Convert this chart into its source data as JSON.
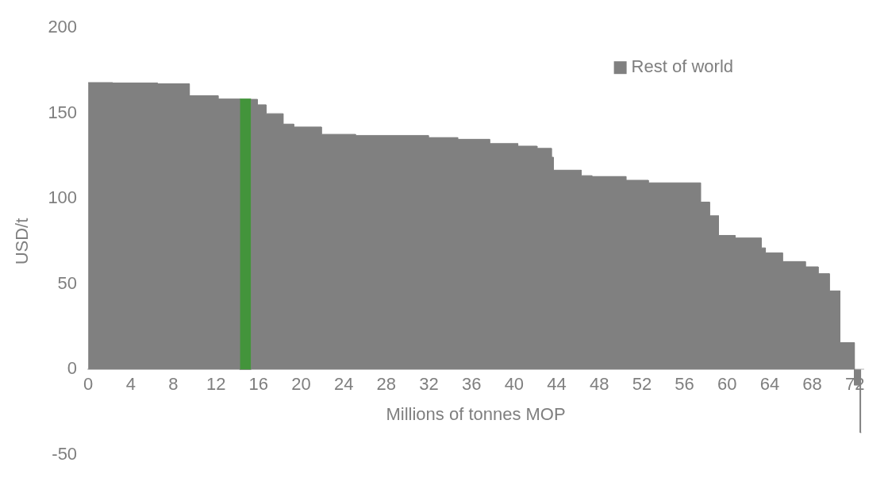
{
  "chart_data": {
    "type": "area",
    "xlabel": "Millions of tonnes MOP",
    "ylabel": "USD/t",
    "xlim": [
      0,
      72.8
    ],
    "xticks": [
      0,
      4,
      8,
      12,
      16,
      20,
      24,
      28,
      32,
      36,
      40,
      44,
      48,
      52,
      56,
      60,
      64,
      68,
      72
    ],
    "ylim": [
      -50,
      200
    ],
    "yticks": [
      -50,
      0,
      50,
      100,
      150,
      200
    ],
    "grid": false,
    "legend": "top right",
    "series": [
      {
        "name": "Rest of world",
        "color": "#808080",
        "x": [
          0,
          2.3,
          2.3,
          6.5,
          6.5,
          9.5,
          9.5,
          12.2,
          12.2,
          14.25,
          14.25,
          15.3,
          15.3,
          15.9,
          15.9,
          16.7,
          16.7,
          18.3,
          18.3,
          19.3,
          19.3,
          21.9,
          21.9,
          25.1,
          25.1,
          31.95,
          31.95,
          34.7,
          34.7,
          37.7,
          37.7,
          40.35,
          40.35,
          42.15,
          42.15,
          43.5,
          43.5,
          43.7,
          43.7,
          46.3,
          46.3,
          47.3,
          47.3,
          50.5,
          50.5,
          52.6,
          52.6,
          57.5,
          57.5,
          58.35,
          58.35,
          59.2,
          59.2,
          60.75,
          60.75,
          63.2,
          63.2,
          63.6,
          63.6,
          65.2,
          65.2,
          67.35,
          67.35,
          68.55,
          68.55,
          69.6,
          69.6,
          70.6,
          70.6,
          71.95,
          71.95,
          72.5,
          72.5,
          72.6
        ],
        "values": [
          168,
          168,
          167.8,
          167.8,
          167.3,
          167.3,
          160.3,
          160.3,
          158.4,
          158.4,
          0,
          0,
          158.2,
          158.2,
          155,
          155,
          149.8,
          149.8,
          143.7,
          143.7,
          142,
          142,
          137.7,
          137.7,
          137,
          137,
          135.8,
          135.8,
          134.8,
          134.8,
          132.3,
          132.3,
          130.8,
          130.8,
          129.5,
          129.5,
          124.3,
          124.3,
          116.7,
          116.7,
          113.5,
          113.5,
          113,
          113,
          110.8,
          110.8,
          109.3,
          109.3,
          98,
          98,
          90,
          90,
          78.5,
          78.5,
          77,
          77,
          71.2,
          71.2,
          68.3,
          68.3,
          63.2,
          63.2,
          60.1,
          60.1,
          56.1,
          56.1,
          46,
          46,
          15.7,
          15.7,
          -9.2,
          -9.2,
          -37,
          -37
        ]
      },
      {
        "color": "#43943b",
        "x": [
          14.25,
          15.3
        ],
        "values": [
          158.4,
          158.4
        ]
      }
    ]
  }
}
